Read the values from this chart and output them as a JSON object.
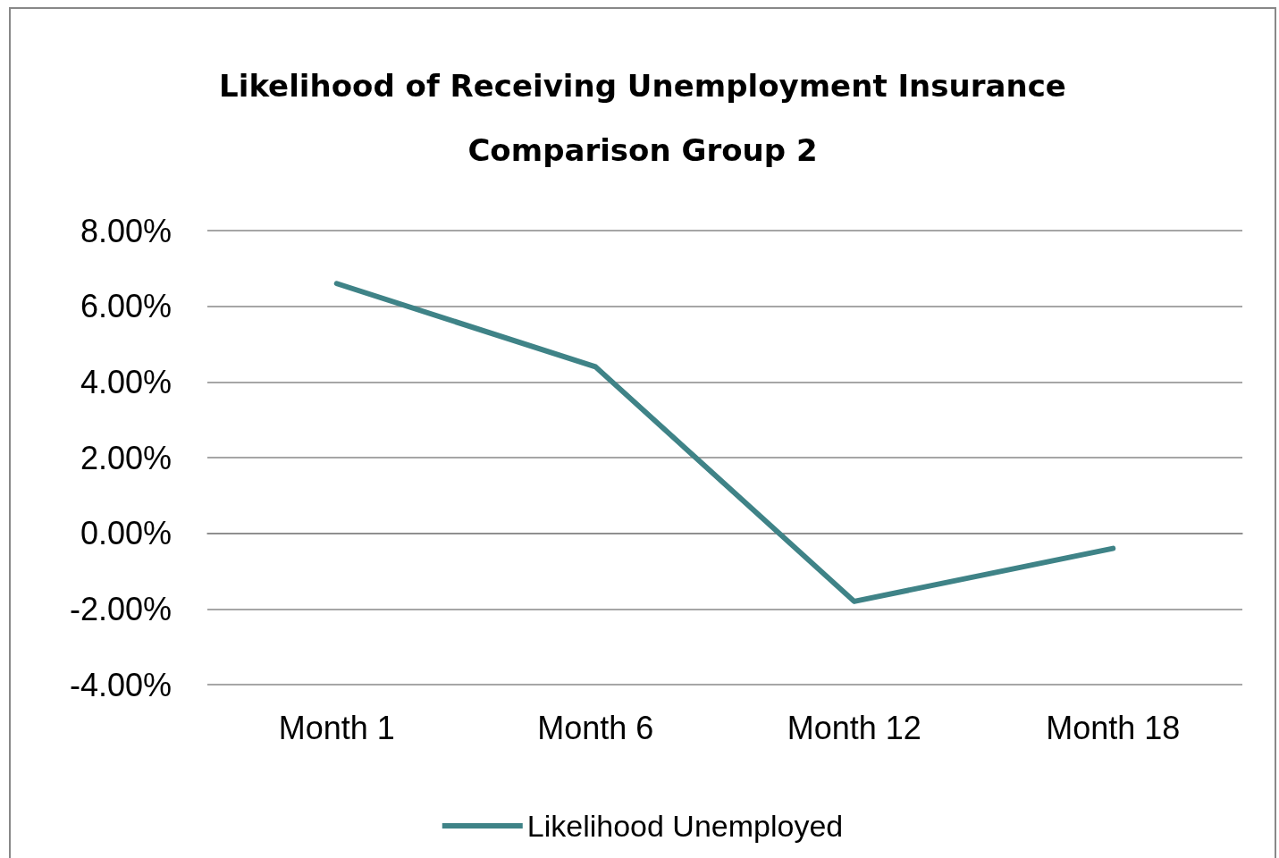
{
  "chart_data": {
    "type": "line",
    "title": "Likelihood of Receiving Unemployment Insurance\nComparison Group 2",
    "categories": [
      "Month 1",
      "Month 6",
      "Month 12",
      "Month 18"
    ],
    "series": [
      {
        "name": "Likelihood Unemployed",
        "color": "#3f8387",
        "values": [
          6.6,
          4.4,
          -1.8,
          -0.4
        ]
      }
    ],
    "ylim": [
      -4,
      8
    ],
    "yticks": [
      {
        "value": -4,
        "label": "-4.00%"
      },
      {
        "value": -2,
        "label": "-2.00%"
      },
      {
        "value": 0,
        "label": "0.00%"
      },
      {
        "value": 2,
        "label": "2.00%"
      },
      {
        "value": 4,
        "label": "4.00%"
      },
      {
        "value": 6,
        "label": "6.00%"
      },
      {
        "value": 8,
        "label": "8.00%"
      }
    ],
    "grid": "y",
    "legend": "bottom",
    "marker": "none",
    "line_style": "solid"
  }
}
